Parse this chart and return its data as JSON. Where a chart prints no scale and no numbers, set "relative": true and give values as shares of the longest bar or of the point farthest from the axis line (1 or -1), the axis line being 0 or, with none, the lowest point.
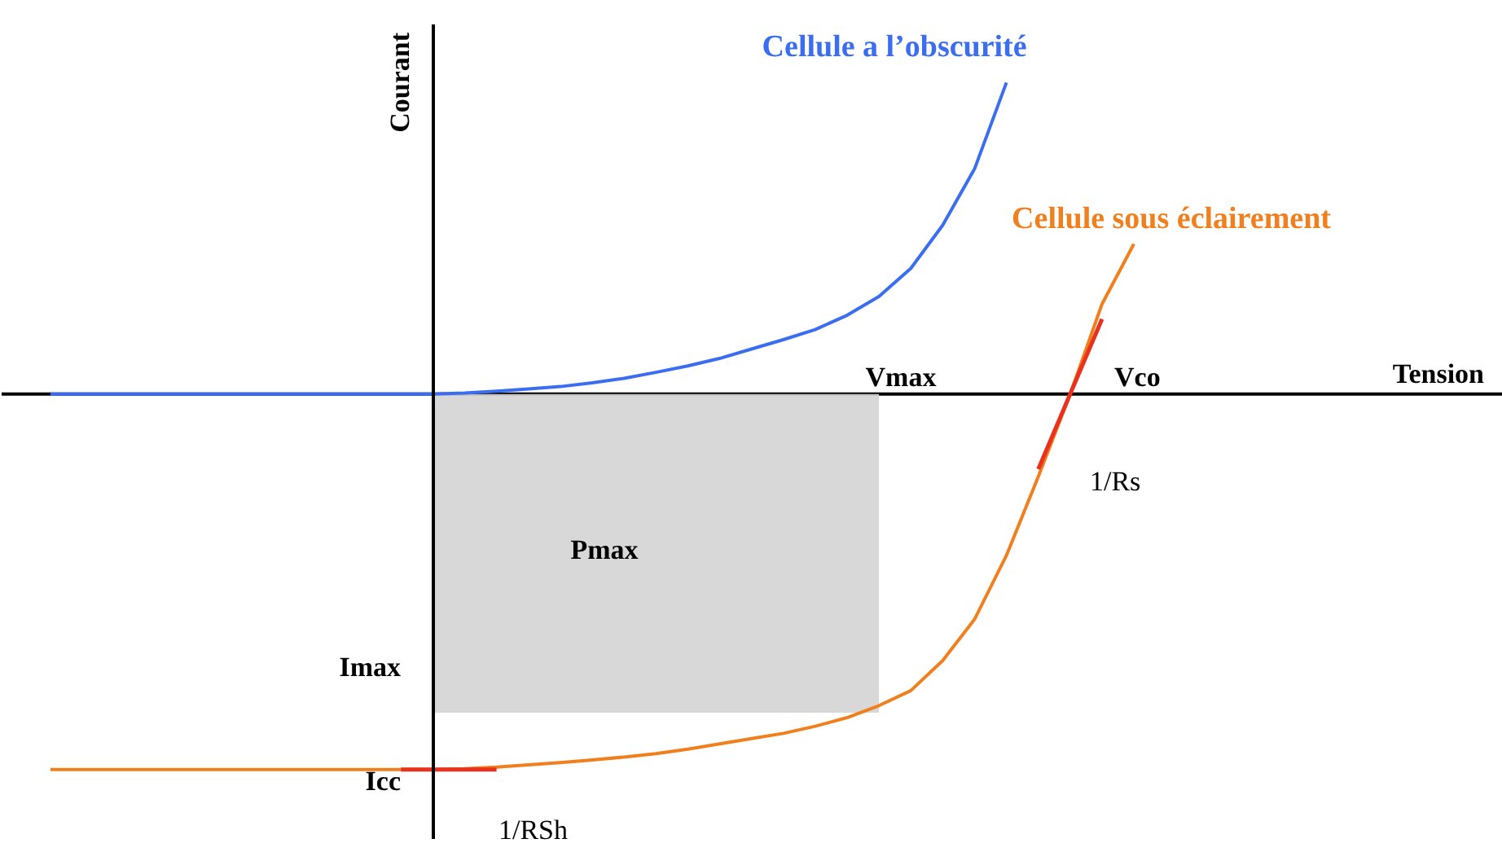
{
  "chart_data": {
    "type": "line",
    "relative": true,
    "ylabel": "Courant",
    "legend": false,
    "ylim": [
      -1.22,
      1.05
    ],
    "categories": [
      null,
      null,
      null,
      null,
      null,
      null,
      null,
      null,
      null,
      null,
      null,
      null,
      null,
      null,
      null,
      null,
      null,
      null,
      null,
      null,
      null,
      null,
      null,
      null,
      null,
      null,
      null,
      null,
      null,
      null,
      null,
      null,
      null,
      null,
      null
    ],
    "series": [
      {
        "name": "Cellule a l’obscurité",
        "color": "#3a6df0",
        "values": [
          0,
          0,
          0,
          0,
          0,
          0,
          0,
          0,
          0,
          0,
          0,
          0,
          0,
          0.003,
          0.008,
          0.014,
          0.02,
          0.03,
          0.042,
          0.058,
          0.075,
          0.095,
          0.12,
          0.145,
          0.172,
          0.21,
          0.26,
          0.335,
          0.45,
          0.6,
          0.83,
          null,
          null,
          null,
          null
        ]
      },
      {
        "name": "Cellule sous éclairement",
        "color": "#f07f1e",
        "values": [
          -1,
          -1,
          -1,
          -1,
          -1,
          -1,
          -1,
          -1,
          -1,
          -1,
          -1,
          -1,
          -1,
          -0.998,
          -0.994,
          -0.988,
          -0.982,
          -0.975,
          -0.967,
          -0.958,
          -0.946,
          -0.932,
          -0.918,
          -0.904,
          -0.885,
          -0.862,
          -0.83,
          -0.79,
          -0.71,
          -0.6,
          -0.43,
          -0.22,
          0,
          0.24,
          0.4
        ]
      },
      {
        "type": "area",
        "color": "#d4d4d4",
        "values": [
          null,
          null,
          null,
          null,
          null,
          null,
          null,
          null,
          null,
          null,
          null,
          null,
          -0.849,
          -0.849,
          -0.849,
          -0.849,
          -0.849,
          -0.849,
          -0.849,
          -0.849,
          -0.849,
          -0.849,
          -0.849,
          -0.849,
          -0.849,
          -0.849,
          -0.849,
          null,
          null,
          null,
          null,
          null,
          null,
          null,
          null
        ]
      },
      {
        "color": "#e8321e",
        "values": [
          null,
          null,
          null,
          null,
          null,
          null,
          null,
          null,
          null,
          null,
          null,
          -1,
          -1,
          -1,
          -1,
          null,
          null,
          null,
          null,
          null,
          null,
          null,
          null,
          null,
          null,
          null,
          null,
          null,
          null,
          null,
          null,
          null,
          null,
          null,
          null
        ]
      },
      {
        "color": "#e8321e",
        "values": [
          null,
          null,
          null,
          null,
          null,
          null,
          null,
          null,
          null,
          null,
          null,
          null,
          null,
          null,
          null,
          null,
          null,
          null,
          null,
          null,
          null,
          null,
          null,
          null,
          null,
          null,
          null,
          null,
          null,
          null,
          null,
          -0.2,
          0,
          0.2,
          null
        ]
      }
    ],
    "annotations": [
      "Vmax",
      "Vco",
      "Imax",
      "Icc",
      "Pmax",
      "1/Rs",
      "1/RSh",
      "Tension"
    ]
  }
}
